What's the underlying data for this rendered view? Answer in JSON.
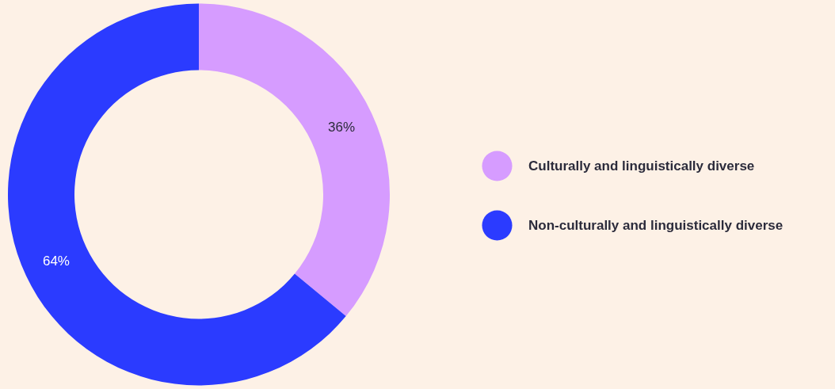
{
  "chart_data": {
    "type": "donut",
    "categories": [
      "Culturally and linguistically diverse",
      "Non-culturally and linguistically diverse"
    ],
    "values": [
      36,
      64
    ],
    "colors": [
      "#d69cff",
      "#2b3bff"
    ],
    "value_labels": [
      "36%",
      "64%"
    ],
    "legend": "right"
  }
}
